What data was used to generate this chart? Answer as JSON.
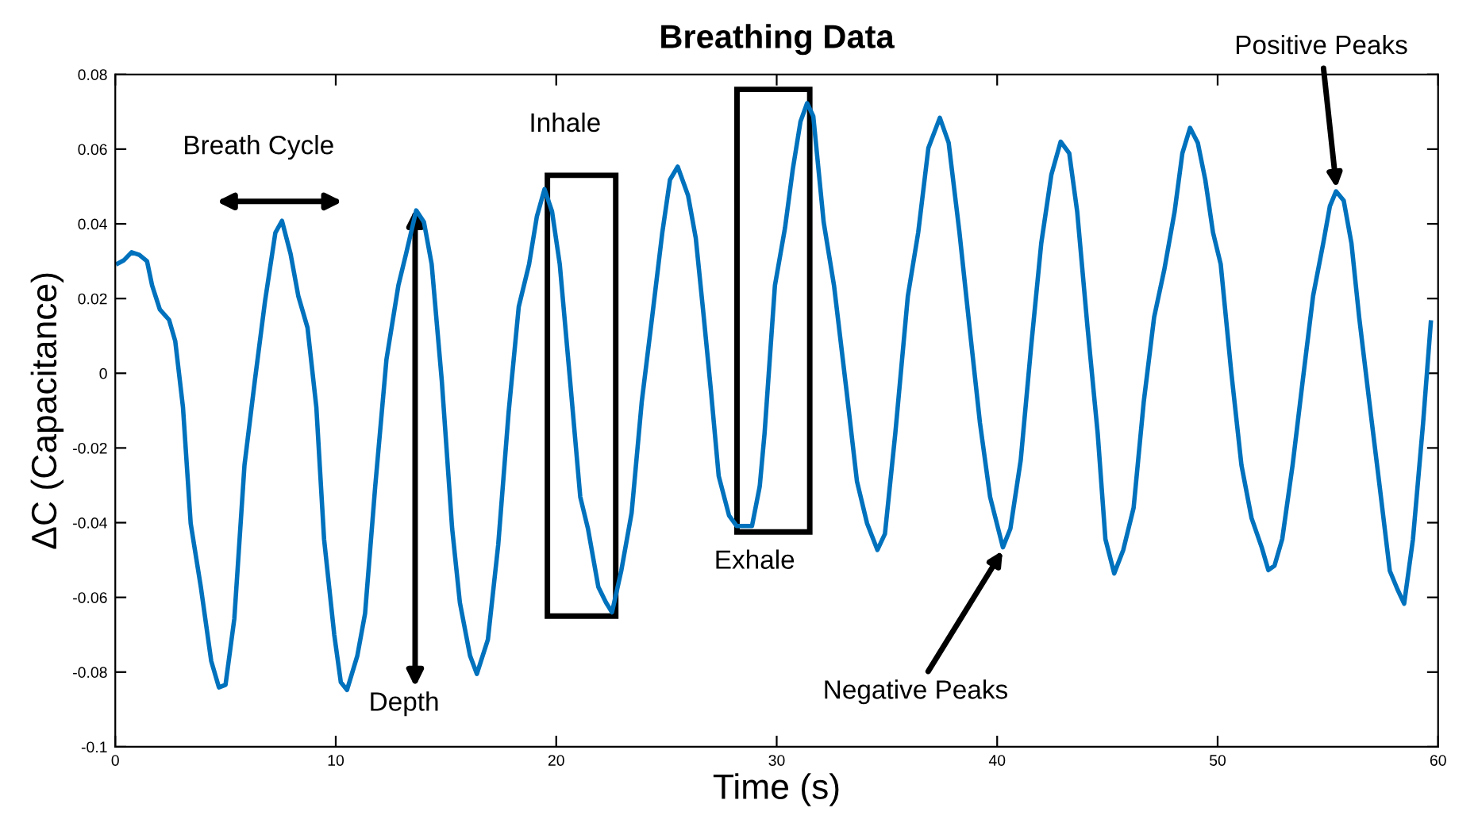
{
  "chart_data": {
    "type": "line",
    "title": "Breathing Data",
    "xlabel": "Time (s)",
    "ylabel": "ΔC (Capacitance)",
    "xlim": [
      0,
      60
    ],
    "xticks": [
      0,
      10,
      20,
      30,
      40,
      50,
      60
    ],
    "ylim": [
      -0.1,
      0.08
    ],
    "yticks": [
      -0.1,
      -0.08,
      -0.06,
      -0.04,
      -0.02,
      0,
      0.02,
      0.04,
      0.06,
      0.08
    ],
    "grid": false,
    "legend": false,
    "line_style": "solid",
    "annotations": [
      "Breath Cycle",
      "Inhale",
      "Exhale",
      {
        "text": "Depth",
        "x": 13.6,
        "y": 0.044
      },
      {
        "text": "Negative Peaks",
        "x": 40.3,
        "y": -0.047
      },
      {
        "text": "Positive Peaks",
        "x": 55.4,
        "y": 0.049
      }
    ],
    "series": [
      {
        "color": "#0072bd",
        "x": [
          0.12,
          0.4,
          0.74,
          1.09,
          1.44,
          1.67,
          2.02,
          2.44,
          2.72,
          3.07,
          3.42,
          3.88,
          4.35,
          4.7,
          5.0,
          5.4,
          5.86,
          6.33,
          6.79,
          7.26,
          7.56,
          7.95,
          8.3,
          8.72,
          9.12,
          9.47,
          9.93,
          10.23,
          10.51,
          10.98,
          11.33,
          11.79,
          12.3,
          12.84,
          13.19,
          13.65,
          14.0,
          14.35,
          14.81,
          15.28,
          15.63,
          16.09,
          16.4,
          16.9,
          17.37,
          17.84,
          18.3,
          18.77,
          19.12,
          19.47,
          19.81,
          20.16,
          20.63,
          21.09,
          21.44,
          21.91,
          22.26,
          22.53,
          22.95,
          23.42,
          23.88,
          24.35,
          24.81,
          25.16,
          25.51,
          25.98,
          26.33,
          26.67,
          27.02,
          27.37,
          27.84,
          28.19,
          28.88,
          29.23,
          29.45,
          29.92,
          30.38,
          30.73,
          31.08,
          31.38,
          31.66,
          32.13,
          32.6,
          33.17,
          33.64,
          34.1,
          34.57,
          34.91,
          35.38,
          35.95,
          36.42,
          36.88,
          37.4,
          37.8,
          38.29,
          38.75,
          39.22,
          39.68,
          40.26,
          40.6,
          41.07,
          41.53,
          42.0,
          42.46,
          42.88,
          43.27,
          43.63,
          44.1,
          44.56,
          44.91,
          45.31,
          45.72,
          46.19,
          46.65,
          47.12,
          47.58,
          48.05,
          48.4,
          48.75,
          49.1,
          49.44,
          49.79,
          50.14,
          50.61,
          51.08,
          51.54,
          52.0,
          52.3,
          52.58,
          52.93,
          53.4,
          53.86,
          54.33,
          54.79,
          55.09,
          55.37,
          55.72,
          56.07,
          56.42,
          56.88,
          57.35,
          57.81,
          58.16,
          58.46,
          58.86,
          59.32,
          59.67
        ],
        "values": [
          0.0294,
          0.0303,
          0.0324,
          0.0317,
          0.03,
          0.0235,
          0.0171,
          0.0143,
          0.0086,
          -0.0091,
          -0.0402,
          -0.0572,
          -0.077,
          -0.0841,
          -0.0834,
          -0.0657,
          -0.0246,
          -0.002,
          0.0192,
          0.0376,
          0.0408,
          0.032,
          0.0207,
          0.0122,
          -0.0091,
          -0.0444,
          -0.0699,
          -0.0827,
          -0.0848,
          -0.0756,
          -0.0643,
          -0.0303,
          0.0037,
          0.0235,
          0.032,
          0.0436,
          0.0405,
          0.0292,
          -0.002,
          -0.0416,
          -0.0614,
          -0.0756,
          -0.0805,
          -0.0713,
          -0.0459,
          -0.0105,
          0.0178,
          0.0292,
          0.0419,
          0.0493,
          0.0433,
          0.0292,
          -0.002,
          -0.0331,
          -0.0416,
          -0.0572,
          -0.0614,
          -0.064,
          -0.0529,
          -0.0374,
          -0.0076,
          0.015,
          0.0376,
          0.0518,
          0.0553,
          0.0476,
          0.0362,
          0.0164,
          -0.0048,
          -0.0275,
          -0.0381,
          -0.0409,
          -0.0409,
          -0.0303,
          -0.0161,
          0.0235,
          0.039,
          0.0546,
          0.0674,
          0.0723,
          0.0688,
          0.0405,
          0.0235,
          -0.0048,
          -0.0289,
          -0.0402,
          -0.0473,
          -0.043,
          -0.0161,
          0.0207,
          0.0377,
          0.0603,
          0.0684,
          0.0617,
          0.0377,
          0.0122,
          -0.0133,
          -0.0331,
          -0.0466,
          -0.0416,
          -0.0232,
          0.0065,
          0.0348,
          0.0532,
          0.062,
          0.0589,
          0.0433,
          0.0122,
          -0.0161,
          -0.0444,
          -0.0536,
          -0.0473,
          -0.036,
          -0.0076,
          0.015,
          0.0277,
          0.0433,
          0.0589,
          0.0657,
          0.0617,
          0.0518,
          0.0377,
          0.0292,
          0.0008,
          -0.0246,
          -0.0388,
          -0.0466,
          -0.0527,
          -0.0515,
          -0.0444,
          -0.0246,
          -0.002,
          0.0207,
          0.0348,
          0.0447,
          0.0487,
          0.0462,
          0.0348,
          0.015,
          -0.0076,
          -0.0303,
          -0.0529,
          -0.0579,
          -0.0617,
          -0.0444,
          -0.0133,
          0.0136
        ]
      }
    ]
  }
}
